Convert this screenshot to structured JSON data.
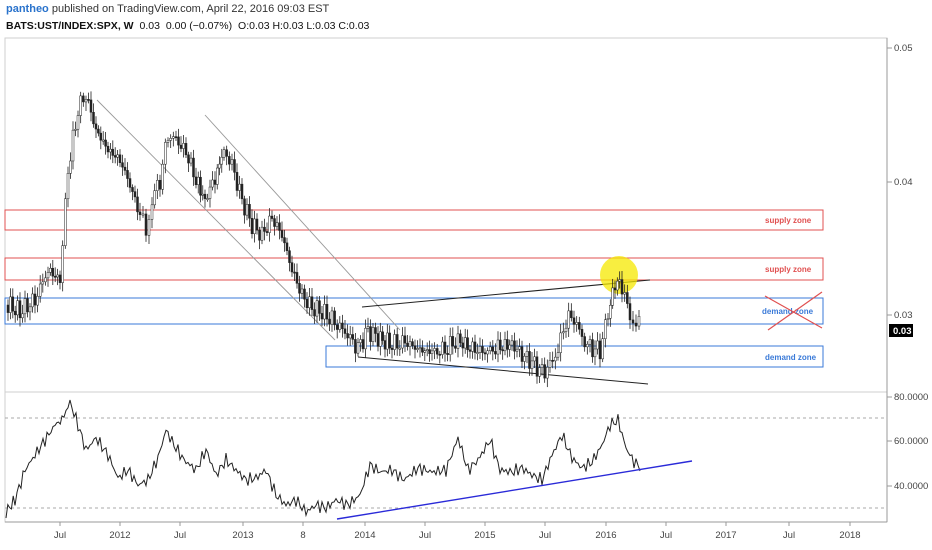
{
  "header": {
    "user": "pantheo",
    "published_text": "published on TradingView.com, April 22, 2016 09:03 EST",
    "symbol": "BATS:UST/INDEX:SPX, W",
    "last": "0.03",
    "change": "0.00 (−0.07%)",
    "ohlc": "O:0.03 H:0.03 L:0.03 C:0.03"
  },
  "price_axis": {
    "labels": [
      "0.05",
      "0.04",
      "0.03"
    ],
    "last_price_tag": "0.03"
  },
  "rsi_axis": {
    "labels": [
      "80.0000",
      "60.0000",
      "40.0000"
    ]
  },
  "time_axis": {
    "labels": [
      "Jul",
      "2012",
      "Jul",
      "2013",
      "8",
      "2014",
      "Jul",
      "2015",
      "Jul",
      "2016",
      "Jul",
      "2017",
      "Jul",
      "2018"
    ]
  },
  "annotations": {
    "supply_zone_1": "supply zone",
    "supply_zone_2": "supply zone",
    "demand_zone_1": "demand zone",
    "demand_zone_2": "demand zone"
  },
  "colors": {
    "supply": "#e05050",
    "demand": "#3a7ad8",
    "rsi_trend": "#2a2ad8",
    "highlight": "#f5e800",
    "candle_up": "#ffffff",
    "candle_down": "#222222"
  }
}
